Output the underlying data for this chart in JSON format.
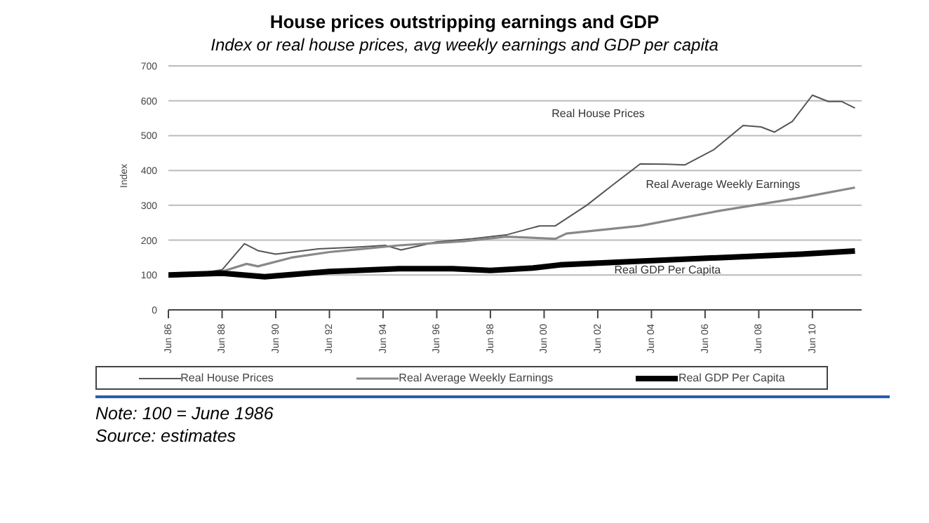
{
  "chart_data": {
    "type": "line",
    "title": "House prices outstripping earnings and GDP",
    "subtitle": "Index or real house prices, avg weekly earnings and GDP per capita",
    "ylabel": "Index",
    "xlim": [
      "1986-06",
      "2012-04"
    ],
    "ylim": [
      0,
      700
    ],
    "yticks": [
      0,
      100,
      200,
      300,
      400,
      500,
      600,
      700
    ],
    "xticks": [
      {
        "value": "1986-06",
        "label": "Jun 86"
      },
      {
        "value": "1988-06",
        "label": "Jun 88"
      },
      {
        "value": "1990-06",
        "label": "Jun 90"
      },
      {
        "value": "1992-06",
        "label": "Jun 92"
      },
      {
        "value": "1994-06",
        "label": "Jun 94"
      },
      {
        "value": "1996-06",
        "label": "Jun 96"
      },
      {
        "value": "1998-06",
        "label": "Jun 98"
      },
      {
        "value": "2000-06",
        "label": "Jun 00"
      },
      {
        "value": "2002-06",
        "label": "Jun 02"
      },
      {
        "value": "2004-06",
        "label": "Jun 04"
      },
      {
        "value": "2006-06",
        "label": "Jun 06"
      },
      {
        "value": "2008-06",
        "label": "Jun 08"
      },
      {
        "value": "2010-06",
        "label": "Jun 10"
      }
    ],
    "grid": "y",
    "legend": "bottom",
    "marker": "none",
    "line_style": "solid",
    "series": [
      {
        "name": "Real House Prices",
        "color": "#555555",
        "x": [
          "1986-06",
          "1987-06",
          "1988-06",
          "1988-12",
          "1989-04",
          "1989-10",
          "1990-06",
          "1992-01",
          "1993-06",
          "1994-07",
          "1995-02",
          "1996-06",
          "1997-10",
          "1999-01",
          "2000-04",
          "2000-11",
          "2002-01",
          "2003-01",
          "2004-01",
          "2005-01",
          "2005-09",
          "2006-10",
          "2007-11",
          "2008-07",
          "2009-01",
          "2009-09",
          "2010-06",
          "2011-01",
          "2011-07",
          "2012-01"
        ],
        "values": [
          100,
          103,
          115,
          160,
          190,
          170,
          160,
          175,
          180,
          185,
          172,
          195,
          204,
          215,
          241,
          241,
          300,
          360,
          419,
          418,
          416,
          460,
          529,
          525,
          510,
          541,
          616,
          598,
          598,
          579
        ]
      },
      {
        "name": "Real Average Weekly Earnings",
        "color": "#888888",
        "x": [
          "1986-06",
          "1987-06",
          "1988-06",
          "1989-05",
          "1989-10",
          "1991-01",
          "1992-06",
          "1995-01",
          "1997-06",
          "1999-01",
          "2000-11",
          "2001-04",
          "2004-01",
          "2007-01",
          "2010-01",
          "2012-01"
        ],
        "values": [
          100,
          103,
          110,
          132,
          125,
          150,
          166,
          185,
          197,
          210,
          204,
          219,
          241,
          285,
          322,
          351
        ]
      },
      {
        "name": "Real GDP Per Capita",
        "color": "#000000",
        "x": [
          "1986-06",
          "1988-06",
          "1990-01",
          "1992-06",
          "1995-01",
          "1997-01",
          "1998-06",
          "2000-01",
          "2001-01",
          "2004-01",
          "2007-01",
          "2010-01",
          "2012-01"
        ],
        "values": [
          100,
          105,
          95,
          110,
          118,
          118,
          113,
          120,
          129,
          140,
          150,
          160,
          169
        ]
      }
    ],
    "annotations": [
      "Real House Prices",
      "Real Average Weekly Earnings",
      "Real GDP Per Capita",
      "Note: 100 = June 1986",
      "Source: estimates"
    ]
  }
}
